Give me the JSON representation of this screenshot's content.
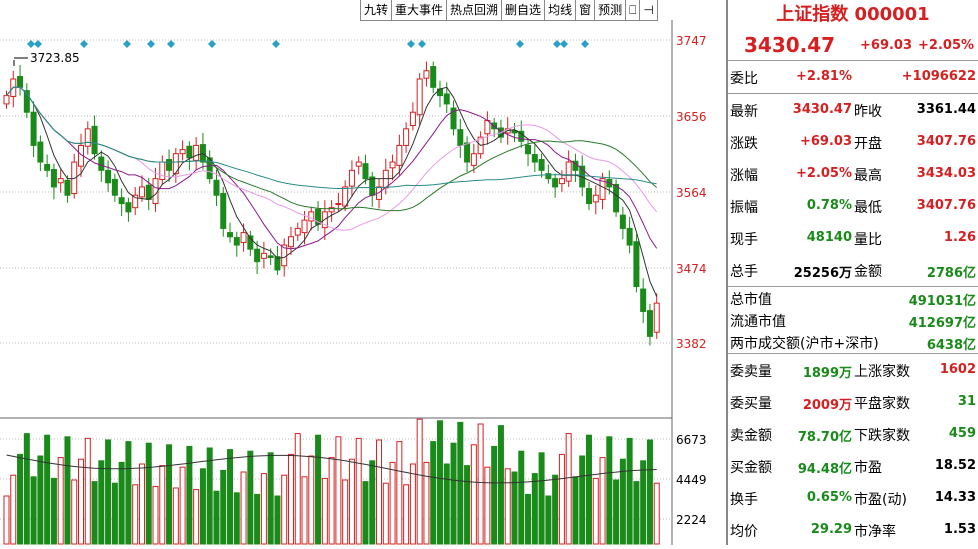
{
  "toolbar": [
    "九转",
    "重大事件",
    "热点回溯",
    "删自选",
    "均线",
    "窗",
    "预测",
    "⎕",
    "⊣"
  ],
  "chart": {
    "price_labels": [
      "3747",
      "3656",
      "3564",
      "3474",
      "3382"
    ],
    "volume_labels": [
      "6673",
      "4449",
      "2224"
    ],
    "annotation": "3723.85"
  },
  "panel": {
    "title": "上证指数 000001",
    "price": "3430.47",
    "change": "+69.03",
    "change_pct": "+2.05%",
    "weibi": {
      "label": "委比",
      "v1": "+2.81%",
      "v2": "+1096622"
    },
    "quote_rows": [
      {
        "l1": "最新",
        "v1": "3430.47",
        "l2": "昨收",
        "v2": "3361.44",
        "c1": "red",
        "c2": "black"
      },
      {
        "l1": "涨跌",
        "v1": "+69.03",
        "l2": "开盘",
        "v2": "3407.76",
        "c1": "red",
        "c2": "red"
      },
      {
        "l1": "涨幅",
        "v1": "+2.05%",
        "l2": "最高",
        "v2": "3434.03",
        "c1": "red",
        "c2": "red"
      },
      {
        "l1": "振幅",
        "v1": "0.78%",
        "l2": "最低",
        "v2": "3407.76",
        "c1": "green",
        "c2": "red"
      },
      {
        "l1": "现手",
        "v1": "48140",
        "l2": "量比",
        "v2": "1.26",
        "c1": "green",
        "c2": "red"
      },
      {
        "l1": "总手",
        "v1": "25256万",
        "l2": "金额",
        "v2": "2786亿",
        "c1": "black",
        "c2": "green"
      }
    ],
    "market_rows": [
      {
        "l1": "总市值",
        "v2": "491031亿"
      },
      {
        "l1": "流通市值",
        "v2": "412697亿"
      },
      {
        "l1": "两市成交额(沪市+深市)",
        "v2": "6438亿"
      }
    ],
    "bottom_rows": [
      {
        "l1": "委卖量",
        "v1": "1899万",
        "l2": "上涨家数",
        "v2": "1602",
        "c1": "green",
        "c2": "red"
      },
      {
        "l1": "委买量",
        "v1": "2009万",
        "l2": "平盘家数",
        "v2": "31",
        "c1": "red",
        "c2": "green"
      },
      {
        "l1": "卖金额",
        "v1": "78.70亿",
        "l2": "下跌家数",
        "v2": "459",
        "c1": "green",
        "c2": "green"
      },
      {
        "l1": "买金额",
        "v1": "94.48亿",
        "l2": "市盈",
        "v2": "18.52",
        "c1": "green",
        "c2": "black"
      },
      {
        "l1": "换手",
        "v1": "0.65%",
        "l2": "市盈(动)",
        "v2": "14.33",
        "c1": "green",
        "c2": "black"
      },
      {
        "l1": "均价",
        "v1": "29.29",
        "l2": "市净率",
        "v2": "1.53",
        "c1": "green",
        "c2": "black"
      }
    ]
  },
  "colors": {
    "up": "#d42020",
    "down": "#1a8a1a",
    "ma5": "#333333",
    "ma10": "#8b1a8b",
    "ma20": "#e89ae8",
    "ma30": "#2a7a2a",
    "ma60": "#2a8a8a",
    "marker": "#2aa0c8"
  }
}
